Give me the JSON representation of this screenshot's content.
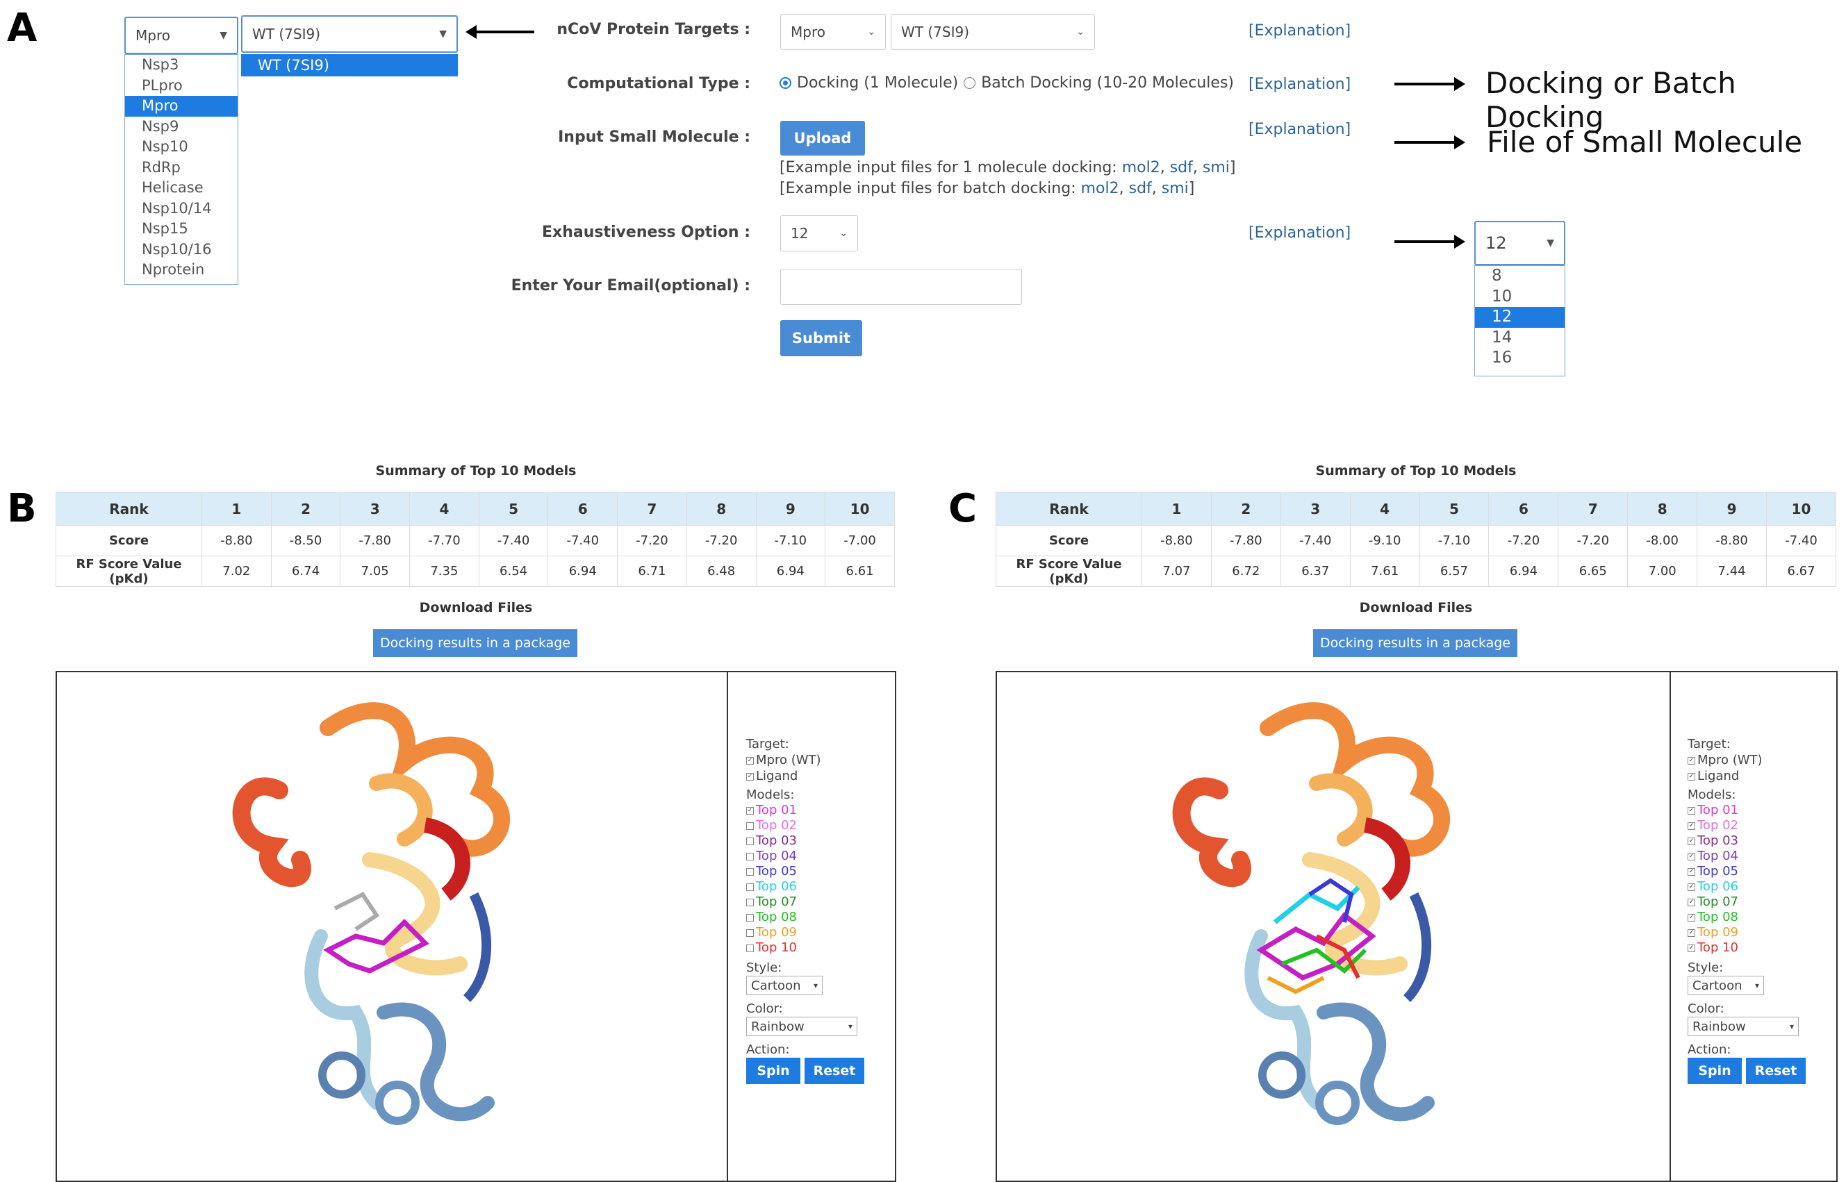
{
  "panels": {
    "a": "A",
    "b": "B",
    "c": "C"
  },
  "form": {
    "target_label": "nCoV Protein Targets :",
    "target_value": "Mpro",
    "variant_value": "WT (7SI9)",
    "comp_label": "Computational Type :",
    "comp_opt1": "Docking (1 Molecule)",
    "comp_opt2": "Batch Docking (10-20 Molecules)",
    "input_label": "Input Small Molecule :",
    "upload": "Upload",
    "ex1_prefix": "[Example input files for 1 molecule docking: ",
    "ex2_prefix": "[Example input files for batch docking: ",
    "ex_mol2": "mol2",
    "ex_sdf": "sdf",
    "ex_smi": "smi",
    "ex_sep": ", ",
    "ex_close": "]",
    "exh_label": "Exhaustiveness Option :",
    "exh_value": "12",
    "email_label": "Enter Your Email(optional) :",
    "submit": "Submit",
    "explanation": "[Explanation]"
  },
  "protein_dropdown": {
    "selected": "Mpro",
    "options": [
      "Nsp3",
      "PLpro",
      "Mpro",
      "Nsp9",
      "Nsp10",
      "RdRp",
      "Helicase",
      "Nsp10/14",
      "Nsp15",
      "Nsp10/16",
      "Nprotein"
    ],
    "selected_index": 2
  },
  "variant_dropdown": {
    "selected": "WT (7SI9)",
    "options": [
      "WT (7SI9)"
    ]
  },
  "exh_dropdown": {
    "selected": "12",
    "options": [
      "8",
      "10",
      "12",
      "14",
      "16"
    ],
    "selected_index": 2
  },
  "annotations": {
    "docking": "Docking or Batch Docking",
    "file": "File of Small Molecule"
  },
  "summary_b": {
    "title": "Summary of Top 10 Models",
    "row_labels": [
      "Rank",
      "Score",
      "RF Score Value (pKd)"
    ],
    "ranks": [
      "1",
      "2",
      "3",
      "4",
      "5",
      "6",
      "7",
      "8",
      "9",
      "10"
    ],
    "scores": [
      "-8.80",
      "-8.50",
      "-7.80",
      "-7.70",
      "-7.40",
      "-7.40",
      "-7.20",
      "-7.20",
      "-7.10",
      "-7.00"
    ],
    "rf": [
      "7.02",
      "6.74",
      "7.05",
      "7.35",
      "6.54",
      "6.94",
      "6.71",
      "6.48",
      "6.94",
      "6.61"
    ],
    "download_title": "Download Files",
    "download_btn": "Docking results in a package"
  },
  "summary_c": {
    "title": "Summary of Top 10 Models",
    "row_labels": [
      "Rank",
      "Score",
      "RF Score Value (pKd)"
    ],
    "ranks": [
      "1",
      "2",
      "3",
      "4",
      "5",
      "6",
      "7",
      "8",
      "9",
      "10"
    ],
    "scores": [
      "-8.80",
      "-7.80",
      "-7.40",
      "-9.10",
      "-7.10",
      "-7.20",
      "-7.20",
      "-8.00",
      "-8.80",
      "-7.40"
    ],
    "rf": [
      "7.07",
      "6.72",
      "6.37",
      "7.61",
      "6.57",
      "6.94",
      "6.65",
      "7.00",
      "7.44",
      "6.67"
    ],
    "download_title": "Download Files",
    "download_btn": "Docking results in a package"
  },
  "viewer": {
    "target_label": "Target:",
    "target_item": "Mpro (WT)",
    "ligand_item": "Ligand",
    "models_label": "Models:",
    "models": [
      {
        "label": "Top 01",
        "color": "#d63ad6"
      },
      {
        "label": "Top 02",
        "color": "#e36fe3"
      },
      {
        "label": "Top 03",
        "color": "#8a2a8a"
      },
      {
        "label": "Top 04",
        "color": "#7a3fc0"
      },
      {
        "label": "Top 05",
        "color": "#3a3ad6"
      },
      {
        "label": "Top 06",
        "color": "#22d0e6"
      },
      {
        "label": "Top 07",
        "color": "#2a8a2a"
      },
      {
        "label": "Top 08",
        "color": "#22c022"
      },
      {
        "label": "Top 09",
        "color": "#f0a020"
      },
      {
        "label": "Top 10",
        "color": "#e03030"
      }
    ],
    "style_label": "Style:",
    "style_value": "Cartoon",
    "color_label": "Color:",
    "color_value": "Rainbow",
    "action_label": "Action:",
    "spin": "Spin",
    "reset": "Reset"
  }
}
